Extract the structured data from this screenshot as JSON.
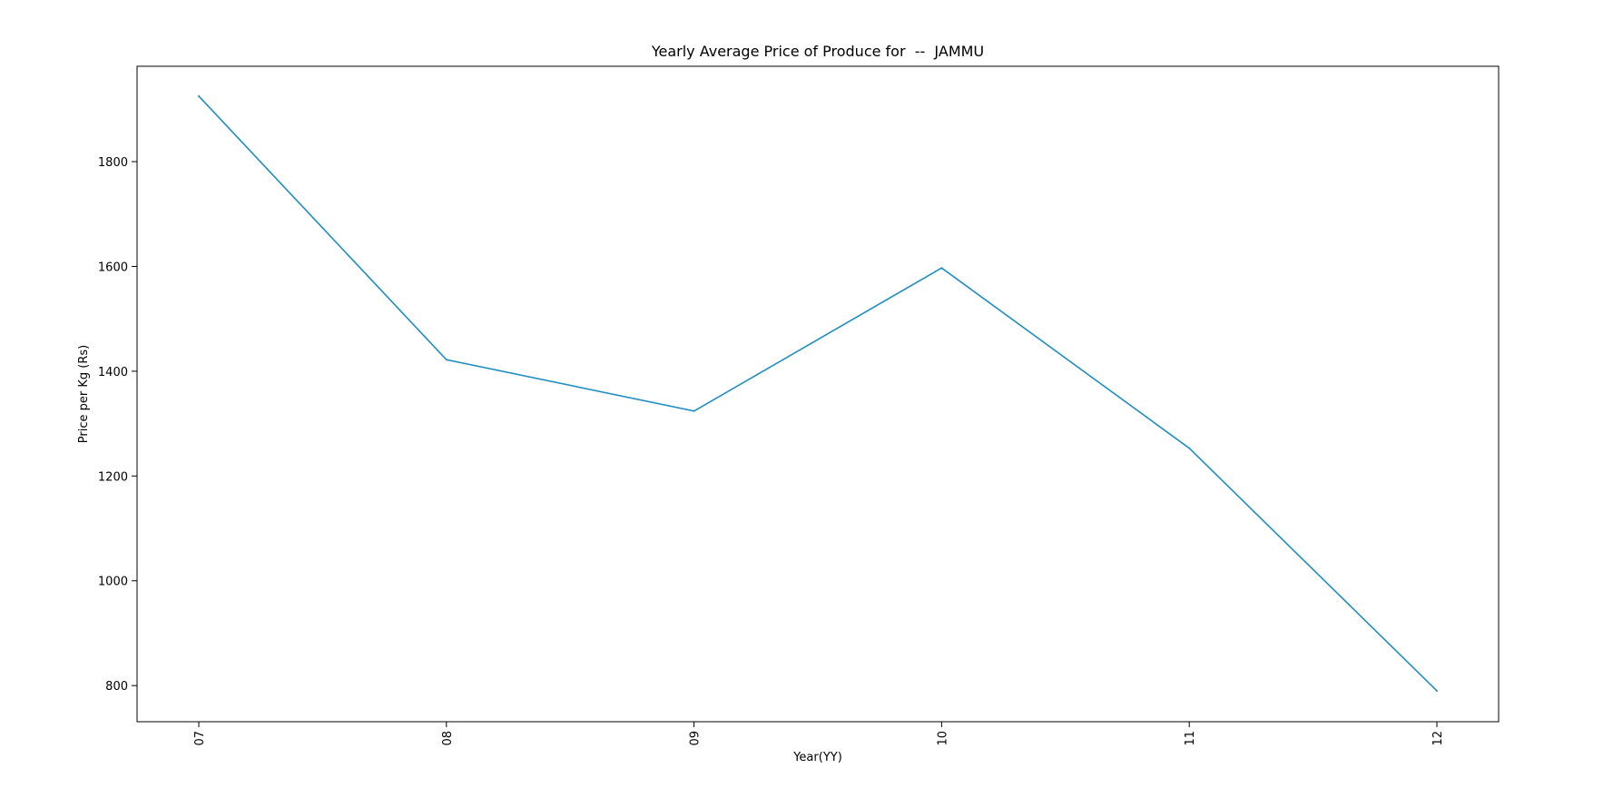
{
  "chart_data": {
    "type": "line",
    "title": "Yearly Average Price of Produce for  --  JAMMU",
    "xlabel": "Year(YY)",
    "ylabel": "Price per Kg (Rs)",
    "categories": [
      "07",
      "08",
      "09",
      "10",
      "11",
      "12"
    ],
    "series": [
      {
        "values": [
          1925,
          1422,
          1324,
          1597,
          1253,
          790
        ],
        "color": "#1f8ec4"
      }
    ],
    "yticks": [
      800,
      1000,
      1200,
      1400,
      1600,
      1800
    ],
    "ylim": [
      731,
      1982
    ],
    "grid": false,
    "legend": "none",
    "xtick_rotation": "vertical"
  }
}
